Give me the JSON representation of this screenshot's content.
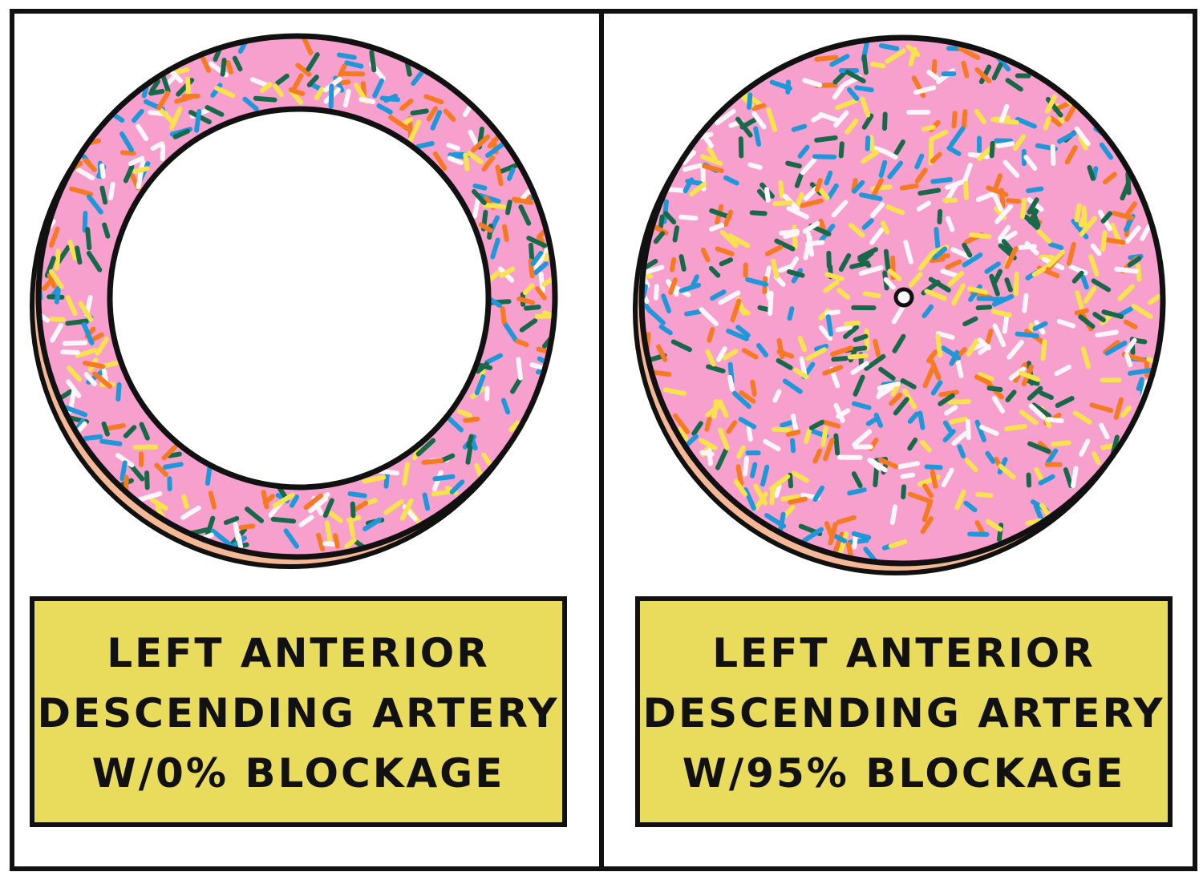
{
  "panels": [
    {
      "caption": [
        "LEFT ANTERIOR",
        "DESCENDING ARTERY",
        "W/0% BLOCKAGE"
      ]
    },
    {
      "caption": [
        "LEFT ANTERIOR",
        "DESCENDING ARTERY",
        "W/95% BLOCKAGE"
      ]
    }
  ]
}
